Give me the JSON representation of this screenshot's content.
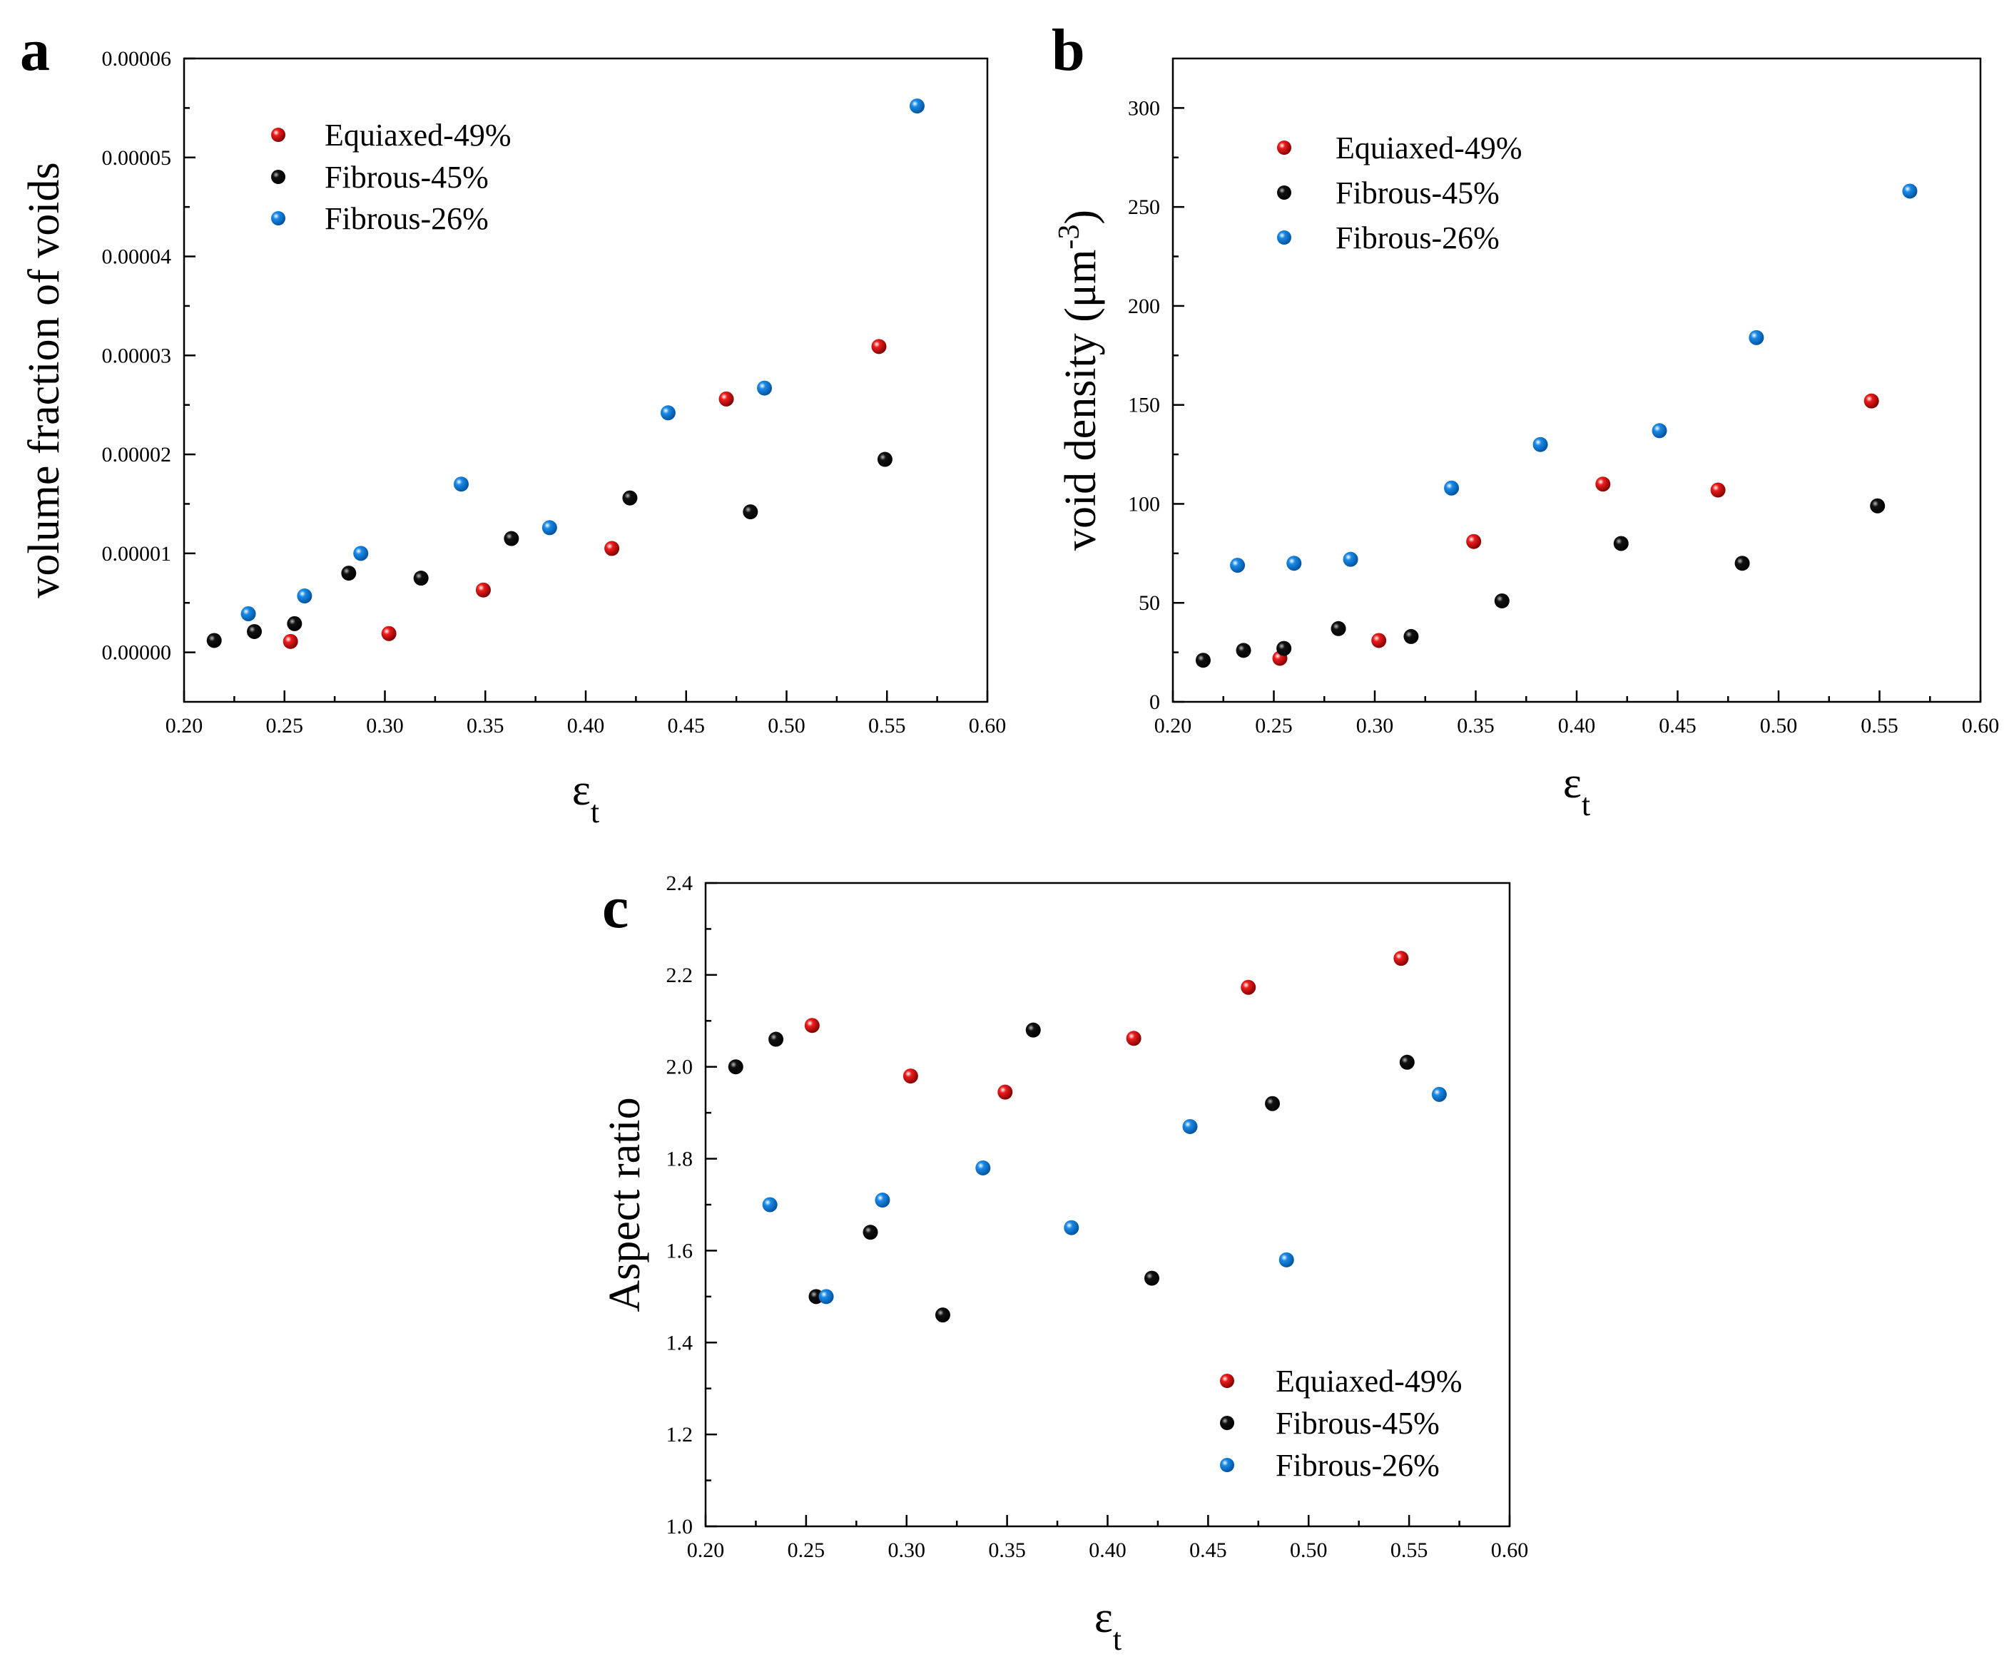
{
  "figure": {
    "colors": {
      "Equiaxed-49%": "#ee1c1c",
      "Fibrous-45%": "#111111",
      "Fibrous-26%": "#1a8ae8"
    }
  },
  "chart_data": [
    {
      "panel": "a",
      "type": "scatter",
      "xlabel": "ε",
      "xlabel_sub": "t",
      "ylabel": "volume fraction of voids",
      "xlim": [
        0.2,
        0.6
      ],
      "ylim": [
        -5e-06,
        6e-05
      ],
      "xticks": [
        "0.20",
        "0.25",
        "0.30",
        "0.35",
        "0.40",
        "0.45",
        "0.50",
        "0.55",
        "0.60"
      ],
      "yticks": [
        "0.00000",
        "0.00001",
        "0.00002",
        "0.00003",
        "0.00004",
        "0.00005",
        "0.00006"
      ],
      "ytick_values": [
        0,
        1e-05,
        2e-05,
        3e-05,
        4e-05,
        5e-05,
        6e-05
      ],
      "legend": {
        "entries": [
          "Equiaxed-49%",
          "Fibrous-45%",
          "Fibrous-26%"
        ],
        "position": "top-left"
      },
      "series": [
        {
          "name": "Equiaxed-49%",
          "x": [
            0.253,
            0.302,
            0.349,
            0.413,
            0.47,
            0.546
          ],
          "y": [
            1.1e-06,
            1.9e-06,
            6.3e-06,
            1.05e-05,
            2.56e-05,
            3.09e-05
          ]
        },
        {
          "name": "Fibrous-45%",
          "x": [
            0.215,
            0.235,
            0.255,
            0.282,
            0.318,
            0.363,
            0.422,
            0.482,
            0.549
          ],
          "y": [
            1.2e-06,
            2.1e-06,
            2.9e-06,
            8e-06,
            7.5e-06,
            1.15e-05,
            1.56e-05,
            1.42e-05,
            1.95e-05
          ]
        },
        {
          "name": "Fibrous-26%",
          "x": [
            0.232,
            0.26,
            0.288,
            0.338,
            0.382,
            0.441,
            0.489,
            0.565
          ],
          "y": [
            3.9e-06,
            5.7e-06,
            1e-05,
            1.7e-05,
            1.26e-05,
            2.42e-05,
            2.67e-05,
            5.52e-05
          ]
        }
      ]
    },
    {
      "panel": "b",
      "type": "scatter",
      "xlabel": "ε",
      "xlabel_sub": "t",
      "ylabel": "void density (μm",
      "ylabel_sup": "-3",
      "ylabel_end": ")",
      "xlim": [
        0.2,
        0.6
      ],
      "ylim": [
        0,
        325
      ],
      "xticks": [
        "0.20",
        "0.25",
        "0.30",
        "0.35",
        "0.40",
        "0.45",
        "0.50",
        "0.55",
        "0.60"
      ],
      "yticks": [
        "0",
        "50",
        "100",
        "150",
        "200",
        "250",
        "300"
      ],
      "ytick_values": [
        0,
        50,
        100,
        150,
        200,
        250,
        300
      ],
      "legend": {
        "entries": [
          "Equiaxed-49%",
          "Fibrous-45%",
          "Fibrous-26%"
        ],
        "position": "top-left"
      },
      "series": [
        {
          "name": "Equiaxed-49%",
          "x": [
            0.253,
            0.302,
            0.349,
            0.413,
            0.47,
            0.546
          ],
          "y": [
            22,
            31,
            81,
            110,
            107,
            152
          ]
        },
        {
          "name": "Fibrous-45%",
          "x": [
            0.215,
            0.235,
            0.255,
            0.282,
            0.318,
            0.363,
            0.422,
            0.482,
            0.549
          ],
          "y": [
            21,
            26,
            27,
            37,
            33,
            51,
            80,
            70,
            99
          ]
        },
        {
          "name": "Fibrous-26%",
          "x": [
            0.232,
            0.26,
            0.288,
            0.338,
            0.382,
            0.441,
            0.489,
            0.565
          ],
          "y": [
            69,
            70,
            72,
            108,
            130,
            137,
            184,
            258
          ]
        }
      ]
    },
    {
      "panel": "c",
      "type": "scatter",
      "xlabel": "ε",
      "xlabel_sub": "t",
      "ylabel": "Aspect ratio",
      "xlim": [
        0.2,
        0.6
      ],
      "ylim": [
        1.0,
        2.4
      ],
      "xticks": [
        "0.20",
        "0.25",
        "0.30",
        "0.35",
        "0.40",
        "0.45",
        "0.50",
        "0.55",
        "0.60"
      ],
      "yticks": [
        "1.0",
        "1.2",
        "1.4",
        "1.6",
        "1.8",
        "2.0",
        "2.2",
        "2.4"
      ],
      "ytick_values": [
        1.0,
        1.2,
        1.4,
        1.6,
        1.8,
        2.0,
        2.2,
        2.4
      ],
      "legend": {
        "entries": [
          "Equiaxed-49%",
          "Fibrous-45%",
          "Fibrous-26%"
        ],
        "position": "bottom-right"
      },
      "series": [
        {
          "name": "Equiaxed-49%",
          "x": [
            0.253,
            0.302,
            0.349,
            0.413,
            0.47,
            0.546
          ],
          "y": [
            2.09,
            1.98,
            1.945,
            2.062,
            2.173,
            2.236
          ]
        },
        {
          "name": "Fibrous-45%",
          "x": [
            0.215,
            0.235,
            0.255,
            0.282,
            0.318,
            0.363,
            0.422,
            0.482,
            0.549
          ],
          "y": [
            2.0,
            2.06,
            1.5,
            1.64,
            1.46,
            2.08,
            1.54,
            1.92,
            2.01
          ]
        },
        {
          "name": "Fibrous-26%",
          "x": [
            0.232,
            0.26,
            0.288,
            0.338,
            0.382,
            0.441,
            0.489,
            0.565
          ],
          "y": [
            1.7,
            1.5,
            1.71,
            1.78,
            1.65,
            1.87,
            1.58,
            1.94
          ]
        }
      ]
    }
  ]
}
